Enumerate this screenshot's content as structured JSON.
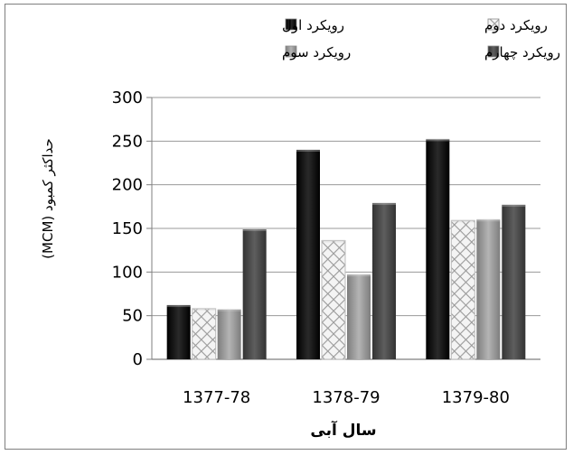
{
  "chart_data": {
    "type": "bar",
    "categories": [
      "1377-78",
      "1378-79",
      "1379-80"
    ],
    "series": [
      {
        "name": "رویکرد اول",
        "values": [
          62,
          240,
          252
        ],
        "color": "#111111",
        "pattern": "solid-dark"
      },
      {
        "name": "رویکرد دوم",
        "values": [
          58,
          136,
          159
        ],
        "color": "#e8e8e8",
        "pattern": "crosshatch"
      },
      {
        "name": "رویکرد سوم",
        "values": [
          57,
          97,
          160
        ],
        "color": "#9a9a9a",
        "pattern": "solid-gray"
      },
      {
        "name": "رویکرد چهارم",
        "values": [
          149,
          179,
          177
        ],
        "color": "#4a4a4a",
        "pattern": "solid-darkgray"
      }
    ],
    "xlabel": "سال آبی",
    "ylabel": "حداکثر کمبود (MCM)",
    "ylim": [
      0,
      300
    ],
    "yticks": [
      0,
      50,
      100,
      150,
      200,
      250,
      300
    ],
    "grid": true,
    "legend": "top"
  }
}
